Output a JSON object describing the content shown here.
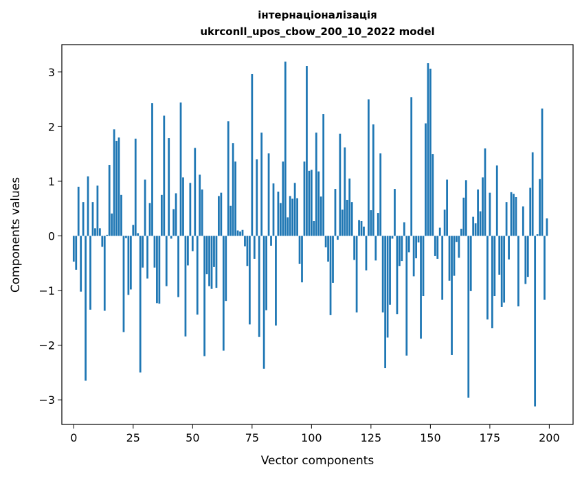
{
  "chart_data": {
    "type": "bar",
    "title_line1": "інтернаціоналізація",
    "title_line2": "ukrconll_upos_cbow_200_10_2022 model",
    "xlabel": "Vector components",
    "ylabel": "Components values",
    "xlim": [
      -5,
      210
    ],
    "ylim": [
      -3.45,
      3.5
    ],
    "xticks": [
      0,
      25,
      50,
      75,
      100,
      125,
      150,
      175,
      200
    ],
    "yticks": [
      -3,
      -2,
      -1,
      0,
      1,
      2,
      3
    ],
    "ytick_labels": [
      "−3",
      "−2",
      "−1",
      "0",
      "1",
      "2",
      "3"
    ],
    "bar_color": "#1f77b4",
    "grid": false,
    "x": [
      0,
      1,
      2,
      3,
      4,
      5,
      6,
      7,
      8,
      9,
      10,
      11,
      12,
      13,
      14,
      15,
      16,
      17,
      18,
      19,
      20,
      21,
      22,
      23,
      24,
      25,
      26,
      27,
      28,
      29,
      30,
      31,
      32,
      33,
      34,
      35,
      36,
      37,
      38,
      39,
      40,
      41,
      42,
      43,
      44,
      45,
      46,
      47,
      48,
      49,
      50,
      51,
      52,
      53,
      54,
      55,
      56,
      57,
      58,
      59,
      60,
      61,
      62,
      63,
      64,
      65,
      66,
      67,
      68,
      69,
      70,
      71,
      72,
      73,
      74,
      75,
      76,
      77,
      78,
      79,
      80,
      81,
      82,
      83,
      84,
      85,
      86,
      87,
      88,
      89,
      90,
      91,
      92,
      93,
      94,
      95,
      96,
      97,
      98,
      99,
      100,
      101,
      102,
      103,
      104,
      105,
      106,
      107,
      108,
      109,
      110,
      111,
      112,
      113,
      114,
      115,
      116,
      117,
      118,
      119,
      120,
      121,
      122,
      123,
      124,
      125,
      126,
      127,
      128,
      129,
      130,
      131,
      132,
      133,
      134,
      135,
      136,
      137,
      138,
      139,
      140,
      141,
      142,
      143,
      144,
      145,
      146,
      147,
      148,
      149,
      150,
      151,
      152,
      153,
      154,
      155,
      156,
      157,
      158,
      159,
      160,
      161,
      162,
      163,
      164,
      165,
      166,
      167,
      168,
      169,
      170,
      171,
      172,
      173,
      174,
      175,
      176,
      177,
      178,
      179,
      180,
      181,
      182,
      183,
      184,
      185,
      186,
      187,
      188,
      189,
      190,
      191,
      192,
      193,
      194,
      195,
      196,
      197,
      198,
      199
    ],
    "values": [
      -0.47,
      -0.62,
      0.9,
      -1.02,
      0.62,
      -2.65,
      1.09,
      -1.35,
      0.62,
      0.14,
      0.92,
      0.14,
      -0.2,
      -1.37,
      0.02,
      1.3,
      0.41,
      1.95,
      1.74,
      1.8,
      0.75,
      -1.76,
      -0.04,
      -1.08,
      -0.98,
      0.2,
      1.78,
      0.05,
      -2.5,
      -0.58,
      1.03,
      -0.78,
      0.6,
      2.43,
      -0.58,
      -1.23,
      -1.24,
      0.75,
      2.2,
      -0.92,
      1.79,
      -0.05,
      0.49,
      0.78,
      -1.12,
      2.44,
      1.07,
      -1.84,
      -0.54,
      0.97,
      -0.28,
      1.61,
      -1.44,
      1.12,
      0.85,
      -2.2,
      -0.7,
      -0.92,
      -0.97,
      -0.57,
      -0.95,
      0.73,
      0.79,
      -2.1,
      -1.19,
      2.1,
      0.55,
      1.7,
      1.36,
      0.1,
      0.08,
      0.11,
      -0.19,
      -0.55,
      -1.62,
      2.96,
      -0.42,
      1.4,
      -1.85,
      1.89,
      -2.43,
      -1.36,
      1.51,
      -0.18,
      0.96,
      -1.64,
      0.81,
      0.6,
      1.36,
      3.19,
      0.34,
      0.73,
      0.68,
      0.97,
      0.69,
      -0.51,
      -0.85,
      1.36,
      3.11,
      1.19,
      1.21,
      0.27,
      1.89,
      1.18,
      0.72,
      2.23,
      -0.21,
      -0.47,
      -1.45,
      -0.86,
      0.86,
      -0.07,
      1.87,
      0.48,
      1.62,
      0.66,
      1.05,
      0.62,
      -0.44,
      -1.4,
      0.29,
      0.27,
      0.17,
      -0.63,
      2.5,
      0.47,
      2.04,
      -0.45,
      0.42,
      1.51,
      -1.4,
      -2.42,
      -1.86,
      -1.26,
      -0.05,
      0.86,
      -1.43,
      -0.55,
      -0.46,
      0.25,
      -2.19,
      -0.3,
      2.54,
      -0.74,
      -0.41,
      -0.12,
      -1.88,
      -1.1,
      2.06,
      3.16,
      3.06,
      1.5,
      -0.37,
      -0.42,
      0.15,
      -1.17,
      0.48,
      1.03,
      -0.82,
      -2.18,
      -0.73,
      -0.11,
      -0.4,
      0.13,
      0.7,
      1.02,
      -2.96,
      -1.01,
      0.35,
      0.23,
      0.85,
      0.45,
      1.07,
      1.6,
      -1.53,
      0.79,
      -1.69,
      -1.1,
      1.29,
      -0.71,
      -1.3,
      -1.22,
      0.62,
      -0.43,
      0.8,
      0.77,
      0.71,
      -1.29,
      0.0,
      0.54,
      -0.88,
      -0.75,
      0.88,
      1.53,
      -3.12,
      0.03,
      1.04,
      2.33,
      -1.17,
      0.32
    ]
  }
}
